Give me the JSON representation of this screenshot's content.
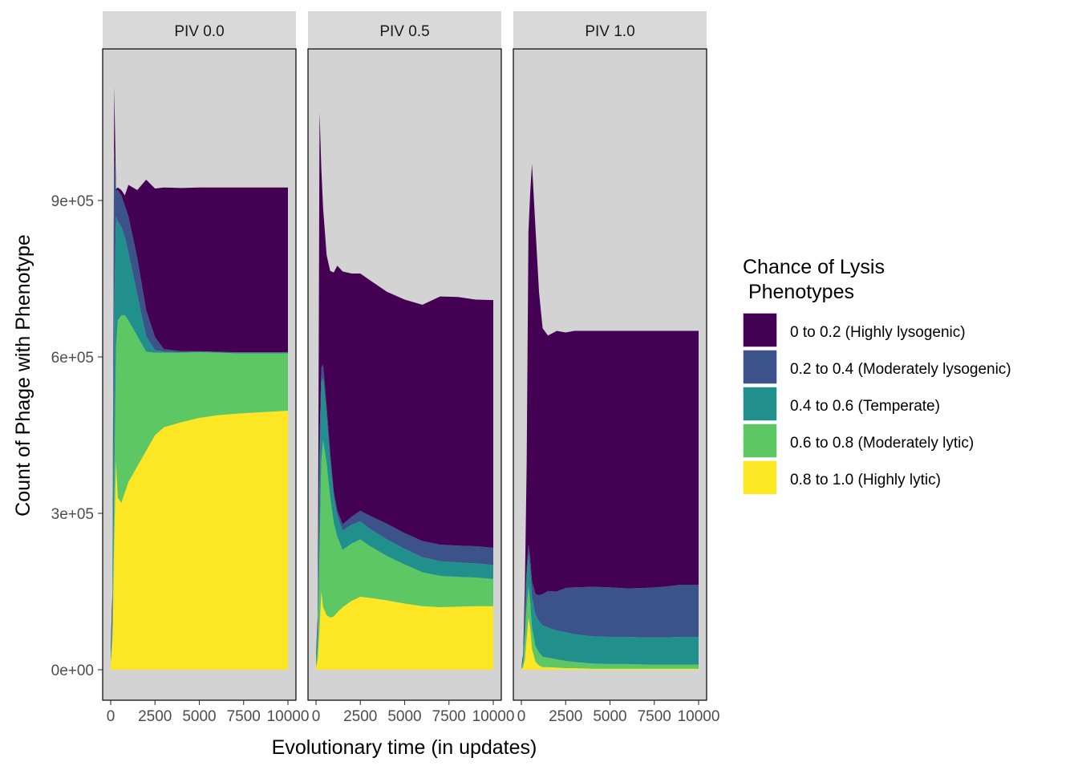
{
  "chart_data": {
    "type": "area",
    "stacked": true,
    "xlabel": "Evolutionary time (in updates)",
    "ylabel": "Count of Phage with Phenotype",
    "xlim": [
      0,
      10000
    ],
    "ylim": [
      -50000,
      1200000
    ],
    "x_ticks": [
      0,
      2500,
      5000,
      7500,
      10000
    ],
    "x_tick_labels": [
      "0",
      "2500",
      "5000",
      "7500",
      "10000"
    ],
    "y_ticks": [
      0,
      300000,
      600000,
      900000
    ],
    "y_tick_labels": [
      "0e+00",
      "3e+05",
      "6e+05",
      "9e+05"
    ],
    "grid": false,
    "legend": {
      "title_line1": "Chance of Lysis",
      "title_line2": " Phenotypes",
      "placement": "right",
      "entries": [
        {
          "label": "0 to 0.2 (Highly lysogenic)",
          "color": "#440154"
        },
        {
          "label": "0.2 to 0.4 (Moderately lysogenic)",
          "color": "#3B528B"
        },
        {
          "label": "0.4 to 0.6 (Temperate)",
          "color": "#21908C"
        },
        {
          "label": "0.6 to 0.8 (Moderately lytic)",
          "color": "#5DC863"
        },
        {
          "label": "0.8 to 1.0 (Highly lytic)",
          "color": "#FDE725"
        }
      ]
    },
    "stack_order_bottom_to_top": [
      "0.8 to 1.0 (Highly lytic)",
      "0.6 to 0.8 (Moderately lytic)",
      "0.4 to 0.6 (Temperate)",
      "0.2 to 0.4 (Moderately lysogenic)",
      "0 to 0.2 (Highly lysogenic)"
    ],
    "panels": [
      {
        "strip": "PIV 0.0",
        "x": [
          0,
          100,
          200,
          300,
          400,
          600,
          800,
          1000,
          1500,
          2000,
          2500,
          3000,
          4000,
          5000,
          6000,
          7000,
          8000,
          9000,
          10000
        ],
        "series": [
          {
            "name": "0.8 to 1.0 (Highly lytic)",
            "values": [
              10000,
              60000,
              250000,
              400000,
              330000,
              320000,
              340000,
              360000,
              390000,
              420000,
              450000,
              465000,
              475000,
              483000,
              488000,
              491000,
              493000,
              495000,
              497000
            ]
          },
          {
            "name": "0.6 to 0.8 (Moderately lytic)",
            "values": [
              5000,
              20000,
              100000,
              220000,
              340000,
              360000,
              340000,
              310000,
              250000,
              190000,
              158000,
              143000,
              133000,
              126000,
              120000,
              116000,
              114000,
              112000,
              110000
            ]
          },
          {
            "name": "0.4 to 0.6 (Temperate)",
            "values": [
              10000,
              30000,
              350000,
              250000,
              190000,
              170000,
              150000,
              130000,
              80000,
              30000,
              5000,
              2000,
              1000,
              1000,
              1000,
              1000,
              1000,
              1000,
              1000
            ]
          },
          {
            "name": "0.2 to 0.4 (Moderately lysogenic)",
            "values": [
              5000,
              10000,
              300000,
              50000,
              60000,
              60000,
              60000,
              70000,
              70000,
              50000,
              25000,
              5000,
              2000,
              1000,
              1000,
              1000,
              1000,
              1000,
              1000
            ]
          },
          {
            "name": "0 to 0.2 (Highly lysogenic)",
            "values": [
              10000,
              30000,
              120000,
              2000,
              5000,
              10000,
              20000,
              60000,
              130000,
              250000,
              285000,
              310000,
              313000,
              314000,
              315000,
              316000,
              316000,
              316000,
              316000
            ]
          }
        ]
      },
      {
        "strip": "PIV 0.5",
        "x": [
          0,
          100,
          200,
          300,
          400,
          600,
          800,
          1000,
          1200,
          1500,
          2000,
          2500,
          3000,
          4000,
          5000,
          6000,
          7000,
          8000,
          9000,
          10000
        ],
        "series": [
          {
            "name": "0.8 to 1.0 (Highly lytic)",
            "values": [
              5000,
              20000,
              80000,
              150000,
              120000,
              105000,
              100000,
              102000,
              110000,
              120000,
              132000,
              140000,
              138000,
              133000,
              127000,
              122000,
              120000,
              121000,
              122000,
              122000
            ]
          },
          {
            "name": "0.6 to 0.8 (Moderately lytic)",
            "values": [
              5000,
              30000,
              150000,
              250000,
              320000,
              290000,
              230000,
              180000,
              145000,
              110000,
              110000,
              110000,
              100000,
              85000,
              75000,
              65000,
              60000,
              57000,
              55000,
              52000
            ]
          },
          {
            "name": "0.4 to 0.6 (Temperate)",
            "values": [
              10000,
              30000,
              150000,
              150000,
              120000,
              90000,
              70000,
              50000,
              40000,
              37000,
              36000,
              35000,
              33000,
              32000,
              30000,
              29000,
              28000,
              28000,
              27000,
              27000
            ]
          },
          {
            "name": "0.2 to 0.4 (Moderately lysogenic)",
            "values": [
              5000,
              10000,
              60000,
              30000,
              25000,
              20000,
              15000,
              10000,
              10000,
              12000,
              15000,
              20000,
              25000,
              30000,
              30000,
              31000,
              32000,
              32000,
              33000,
              33000
            ]
          },
          {
            "name": "0 to 0.2 (Highly lysogenic)",
            "values": [
              5000,
              15000,
              630000,
              380000,
              300000,
              290000,
              350000,
              420000,
              470000,
              485000,
              467000,
              455000,
              452000,
              445000,
              448000,
              453000,
              476000,
              477000,
              473000,
              475000
            ]
          }
        ]
      },
      {
        "strip": "PIV 1.0",
        "x": [
          0,
          100,
          200,
          300,
          400,
          500,
          600,
          800,
          1000,
          1200,
          1500,
          2000,
          2500,
          3000,
          4000,
          5000,
          6000,
          7000,
          8000,
          9000,
          10000
        ],
        "series": [
          {
            "name": "0.8 to 1.0 (Highly lytic)",
            "values": [
              1000,
              5000,
              20000,
              60000,
              100000,
              80000,
              40000,
              15000,
              8000,
              5000,
              5000,
              4000,
              3000,
              3000,
              2000,
              2000,
              2000,
              2000,
              2000,
              2000,
              2000
            ]
          },
          {
            "name": "0.6 to 0.8 (Moderately lytic)",
            "values": [
              1000,
              10000,
              40000,
              60000,
              60000,
              50000,
              40000,
              30000,
              25000,
              20000,
              18000,
              16000,
              14000,
              12000,
              10000,
              9000,
              9000,
              8000,
              8000,
              8000,
              8000
            ]
          },
          {
            "name": "0.4 to 0.6 (Temperate)",
            "values": [
              1000,
              5000,
              40000,
              60000,
              60000,
              60000,
              60000,
              60000,
              60000,
              60000,
              58000,
              55000,
              55000,
              53000,
              52000,
              52000,
              52000,
              52000,
              52000,
              53000,
              53000
            ]
          },
          {
            "name": "0.2 to 0.4 (Moderately lysogenic)",
            "values": [
              500,
              2000,
              10000,
              15000,
              20000,
              25000,
              30000,
              40000,
              50000,
              60000,
              70000,
              75000,
              85000,
              90000,
              95000,
              95000,
              93000,
              95000,
              97000,
              100000,
              100000
            ]
          },
          {
            "name": "0 to 0.2 (Highly lysogenic)",
            "values": [
              500,
              8000,
              50000,
              200000,
              600000,
              700000,
              800000,
              700000,
              580000,
              510000,
              490000,
              500000,
              490000,
              492000,
              491000,
              492000,
              494000,
              493000,
              491000,
              487000,
              487000
            ]
          }
        ]
      }
    ]
  }
}
